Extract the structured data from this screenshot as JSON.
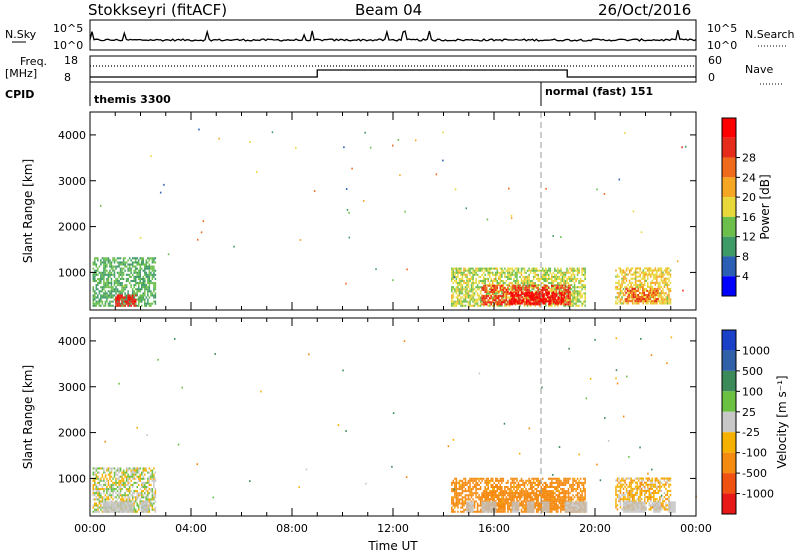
{
  "header": {
    "station": "Stokkseyri (fitACF)",
    "beam": "Beam 04",
    "date": "26/Oct/2016"
  },
  "strips": {
    "nsky_label": "N.Sky",
    "nsky_ticks": [
      "10^5",
      "10^0"
    ],
    "nsearch_label": "N.Search",
    "nsearch_ticks": [
      "10^5",
      "10^0"
    ],
    "freq_label": "Freq.",
    "freq_unit": "[MHz]",
    "freq_ticks": [
      "18",
      "8"
    ],
    "nave_label": "Nave",
    "nave_ticks": [
      "60",
      "0"
    ],
    "cpid_label": "CPID",
    "cpid_1": "themis 3300",
    "cpid_2": "normal (fast) 151"
  },
  "colors": {
    "power": [
      "#0000ff",
      "#2a5fb5",
      "#3e9a66",
      "#6bbf4a",
      "#e8d83a",
      "#f5a623",
      "#f06a1c",
      "#e52b1a",
      "#ff0000"
    ],
    "velocity": [
      "#1a40c8",
      "#3060a8",
      "#3c8a5a",
      "#6ac040",
      "#c8c8c8",
      "#f5b000",
      "#f58a10",
      "#f05010",
      "#e81818"
    ],
    "ground": "#c0c0c0"
  },
  "chart_data": [
    {
      "type": "heatmap",
      "name": "power",
      "title": "",
      "xlabel": "",
      "ylabel": "Slant Range [km]",
      "x_range": [
        "00:00",
        "24:00"
      ],
      "y_range_km": [
        180,
        4500
      ],
      "y_ticks": [
        "1000",
        "2000",
        "3000",
        "4000"
      ],
      "colorbar_label": "Power [dB]",
      "colorbar_ticks": [
        "4",
        "8",
        "12",
        "16",
        "20",
        "24",
        "28"
      ],
      "colorbar_range": [
        0,
        30
      ],
      "regions": [
        {
          "t0": 0.1,
          "t1": 2.6,
          "r0": 250,
          "r1": 1300,
          "value": 10
        },
        {
          "t0": 1.0,
          "t1": 1.8,
          "r0": 250,
          "r1": 500,
          "value": 26
        },
        {
          "t0": 14.3,
          "t1": 19.6,
          "r0": 250,
          "r1": 1100,
          "value": 14
        },
        {
          "t0": 15.5,
          "t1": 19.0,
          "r0": 280,
          "r1": 700,
          "value": 24
        },
        {
          "t0": 16.6,
          "t1": 18.8,
          "r0": 300,
          "r1": 550,
          "value": 29
        },
        {
          "t0": 20.8,
          "t1": 23.0,
          "r0": 300,
          "r1": 1100,
          "value": 16
        },
        {
          "t0": 21.2,
          "t1": 22.5,
          "r0": 350,
          "r1": 650,
          "value": 22
        }
      ]
    },
    {
      "type": "heatmap",
      "name": "velocity",
      "title": "",
      "xlabel": "Time UT",
      "ylabel": "Slant Range [km]",
      "x_range": [
        "00:00",
        "24:00"
      ],
      "x_ticks": [
        "00:00",
        "04:00",
        "08:00",
        "12:00",
        "16:00",
        "20:00",
        "00:00"
      ],
      "y_range_km": [
        180,
        4500
      ],
      "y_ticks": [
        "1000",
        "2000",
        "3000",
        "4000"
      ],
      "colorbar_label": "Velocity [m s⁻¹]",
      "colorbar_ticks": [
        "1000",
        "500",
        "100",
        "25",
        "-25",
        "-100",
        "-500",
        "-1000"
      ],
      "regions": [
        {
          "t0": 0.1,
          "t1": 2.6,
          "r0": 250,
          "r1": 1200,
          "value": 0
        },
        {
          "t0": 14.3,
          "t1": 19.6,
          "r0": 250,
          "r1": 1000,
          "value": -150
        },
        {
          "t0": 15.5,
          "t1": 18.8,
          "r0": 300,
          "r1": 700,
          "value": -300
        },
        {
          "t0": 20.8,
          "t1": 23.0,
          "r0": 300,
          "r1": 1000,
          "value": -60
        }
      ]
    }
  ]
}
